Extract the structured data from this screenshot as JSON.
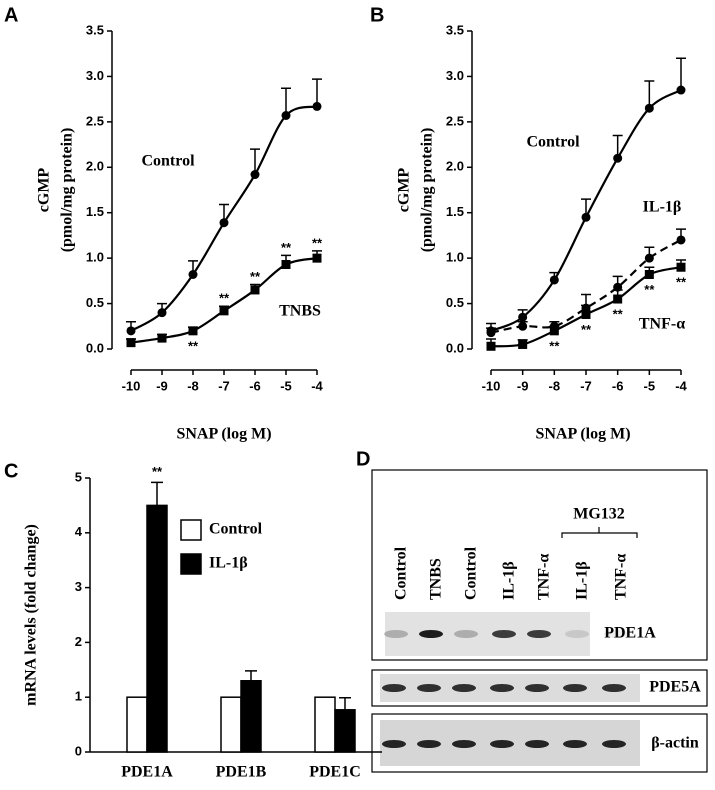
{
  "chart_data": [
    {
      "type": "line",
      "label": "A",
      "ylabel": [
        "cGMP",
        "(pmol/mg protein)"
      ],
      "xlabel": "SNAP (log M)",
      "x": [
        -10,
        -9,
        -8,
        -7,
        -6,
        -5,
        -4
      ],
      "xlim": [
        -10,
        -4
      ],
      "xticks": [
        -10,
        -9,
        -8,
        -7,
        -6,
        -5,
        -4
      ],
      "ylim": [
        0,
        3.5
      ],
      "yticks": [
        {
          "value": 0,
          "label": "0.0"
        },
        0.5,
        {
          "value": 1,
          "label": "1.0"
        },
        1.5,
        {
          "value": 2,
          "label": "2.0"
        },
        2.5,
        {
          "value": 3,
          "label": "3.0"
        },
        3.5
      ],
      "series": [
        {
          "name": "Control",
          "color": "#000000",
          "marker": "circle",
          "dashed": false,
          "values": [
            0.2,
            0.4,
            0.82,
            1.39,
            1.92,
            2.57,
            2.67
          ],
          "errors": [
            0.1,
            0.1,
            0.15,
            0.2,
            0.28,
            0.3,
            0.3
          ]
        },
        {
          "name": "TNBS",
          "color": "#000000",
          "marker": "square",
          "dashed": false,
          "values": [
            0.07,
            0.12,
            0.2,
            0.42,
            0.65,
            0.93,
            1.0
          ],
          "errors": [
            0.04,
            0.04,
            0.04,
            0.05,
            0.06,
            0.1,
            0.08
          ]
        }
      ],
      "significance": [
        {
          "text": "**",
          "series": 1,
          "index": 2,
          "side": "below"
        },
        {
          "text": "**",
          "series": 1,
          "index": 3,
          "side": "above"
        },
        {
          "text": "**",
          "series": 1,
          "index": 4,
          "side": "above"
        },
        {
          "text": "**",
          "series": 1,
          "index": 5,
          "side": "above"
        },
        {
          "text": "**",
          "series": 1,
          "index": 6,
          "side": "above"
        }
      ]
    },
    {
      "type": "line",
      "label": "B",
      "ylabel": [
        "cGMP",
        "(pmol/mg protein)"
      ],
      "xlabel": "SNAP (log M)",
      "x": [
        -10,
        -9,
        -8,
        -7,
        -6,
        -5,
        -4
      ],
      "xlim": [
        -10,
        -4
      ],
      "xticks": [
        -10,
        -9,
        -8,
        -7,
        -6,
        -5,
        -4
      ],
      "ylim": [
        0,
        3.5
      ],
      "yticks": [
        {
          "value": 0,
          "label": "0.0"
        },
        0.5,
        {
          "value": 1,
          "label": "1.0"
        },
        1.5,
        {
          "value": 2,
          "label": "2.0"
        },
        2.5,
        {
          "value": 3,
          "label": "3.0"
        },
        3.5
      ],
      "series": [
        {
          "name": "Control",
          "color": "#000000",
          "marker": "circle",
          "dashed": false,
          "values": [
            0.2,
            0.35,
            0.76,
            1.45,
            2.1,
            2.65,
            2.85
          ],
          "errors": [
            0.08,
            0.08,
            0.08,
            0.2,
            0.25,
            0.3,
            0.35
          ]
        },
        {
          "name": "IL-1β",
          "color": "#000000",
          "marker": "circle",
          "dashed": true,
          "values": [
            0.18,
            0.25,
            0.25,
            0.45,
            0.68,
            1.0,
            1.2
          ],
          "errors": [
            0.05,
            0.05,
            0.05,
            0.15,
            0.12,
            0.12,
            0.12
          ]
        },
        {
          "name": "TNF-α",
          "color": "#000000",
          "marker": "square",
          "dashed": false,
          "values": [
            0.03,
            0.05,
            0.2,
            0.38,
            0.55,
            0.82,
            0.9
          ],
          "errors": [
            0.08,
            0.05,
            0.05,
            0.1,
            0.1,
            0.08,
            0.08
          ]
        }
      ],
      "significance": [
        {
          "text": "**",
          "series": 2,
          "index": 2,
          "side": "below"
        },
        {
          "text": "**",
          "series": 2,
          "index": 3,
          "side": "below"
        },
        {
          "text": "**",
          "series": 2,
          "index": 4,
          "side": "below"
        },
        {
          "text": "**",
          "series": 2,
          "index": 5,
          "side": "below"
        },
        {
          "text": "**",
          "series": 2,
          "index": 6,
          "side": "below"
        }
      ]
    },
    {
      "type": "bar",
      "label": "C",
      "ylabel": "mRNA levels  (fold change)",
      "categories": [
        "PDE1A",
        "PDE1B",
        "PDE1C"
      ],
      "ylim": [
        0,
        5
      ],
      "yticks": [
        0,
        1,
        2,
        3,
        4,
        5
      ],
      "series": [
        {
          "name": "Control",
          "color": "#ffffff",
          "values": [
            1,
            1,
            1
          ]
        },
        {
          "name": "IL-1β",
          "color": "#000000",
          "values": [
            4.5,
            1.3,
            0.77
          ],
          "errors": [
            0.42,
            0.18,
            0.22
          ]
        }
      ],
      "significance": [
        {
          "text": "**",
          "series": 1,
          "index": 0,
          "side": "above"
        }
      ]
    }
  ],
  "blot": {
    "label": "D",
    "lanes": [
      "Control",
      "TNBS",
      "Control",
      "IL-1β",
      "TNF-α",
      "IL-1β",
      "TNF-α"
    ],
    "group": "MG132",
    "rows": [
      "PDE1A",
      "PDE5A",
      "β-actin"
    ]
  }
}
